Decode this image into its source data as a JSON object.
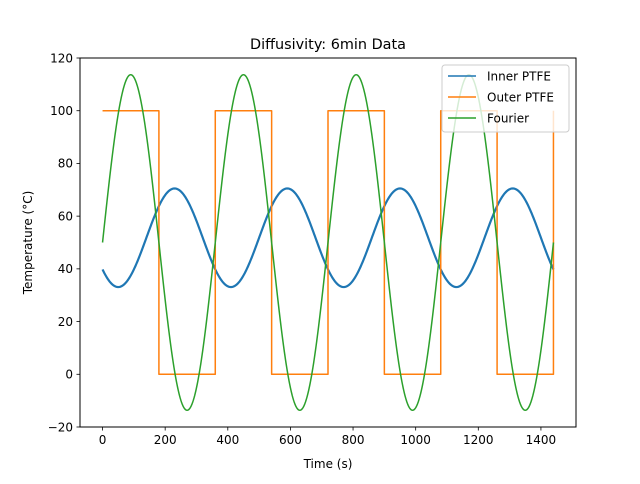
{
  "chart_data": {
    "type": "line",
    "title": "Diffusivity: 6min Data",
    "xlabel": "Time (s)",
    "ylabel": "Temperature (°C)",
    "xlim": [
      -72,
      1512
    ],
    "ylim": [
      -20,
      120
    ],
    "xticks": [
      0,
      200,
      400,
      600,
      800,
      1000,
      1200,
      1400
    ],
    "yticks": [
      -20,
      0,
      20,
      40,
      60,
      80,
      100,
      120
    ],
    "legend_position": "top-right",
    "grid": false,
    "series": [
      {
        "name": "Inner PTFE",
        "color": "#1f77b4",
        "kind": "sinusoid",
        "x_range": [
          0,
          1440
        ],
        "mean": 51.8,
        "amplitude": 18.7,
        "period": 360,
        "peak_x": 230
      },
      {
        "name": "Outer PTFE",
        "color": "#ff7f0e",
        "kind": "square",
        "x": [
          0,
          180,
          180,
          360,
          360,
          540,
          540,
          720,
          720,
          900,
          900,
          1080,
          1080,
          1260,
          1260,
          1440,
          1440
        ],
        "y": [
          100,
          100,
          0,
          0,
          100,
          100,
          0,
          0,
          100,
          100,
          0,
          0,
          100,
          100,
          0,
          0,
          100
        ]
      },
      {
        "name": "Fourier",
        "color": "#2ca02c",
        "kind": "sinusoid",
        "x_range": [
          0,
          1440
        ],
        "mean": 50,
        "amplitude": 63.66,
        "period": 360,
        "peak_x": 90
      }
    ]
  }
}
